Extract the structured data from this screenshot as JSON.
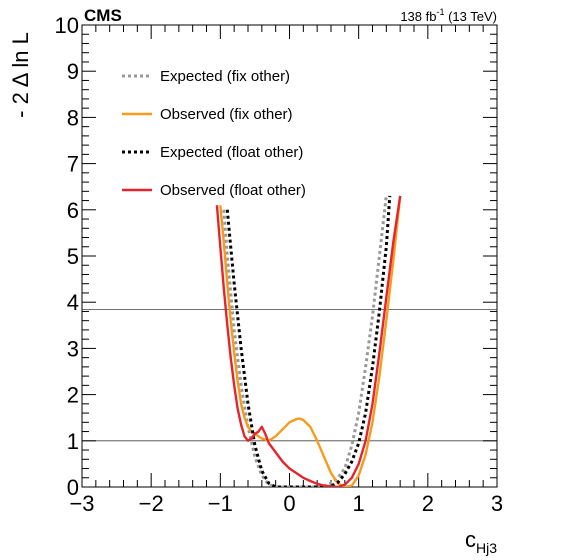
{
  "chart_data": {
    "type": "line",
    "experiment_label": "CMS",
    "lumi_label": {
      "value": "138 fb",
      "exponent": "-1",
      "suffix": " (13 TeV)"
    },
    "xlabel": {
      "main": "c",
      "sub": "Hj3"
    },
    "ylabel": "- 2 Δ ln L",
    "xlim": [
      -3,
      3
    ],
    "ylim": [
      0,
      10
    ],
    "x_ticks": [
      "−3",
      "−2",
      "−1",
      "0",
      "1",
      "2",
      "3"
    ],
    "y_ticks": [
      "0",
      "1",
      "2",
      "3",
      "4",
      "5",
      "6",
      "7",
      "8",
      "9",
      "10"
    ],
    "reference_lines": [
      1,
      3.84
    ],
    "legend": {
      "position": "top-left"
    },
    "series": [
      {
        "name": "Expected (fix other)",
        "color": "#999999",
        "style": "dotted",
        "x": [
          -0.95,
          -0.9,
          -0.8,
          -0.7,
          -0.6,
          -0.5,
          -0.4,
          -0.3,
          -0.2,
          -0.1,
          0.0,
          0.2,
          0.4,
          0.5,
          0.6,
          0.7,
          0.8,
          0.9,
          1.0,
          1.1,
          1.2,
          1.3,
          1.4
        ],
        "y": [
          6.0,
          5.0,
          3.4,
          2.2,
          1.3,
          0.65,
          0.25,
          0.05,
          0.0,
          0.0,
          0.0,
          0.0,
          0.0,
          0.02,
          0.08,
          0.2,
          0.4,
          0.9,
          1.6,
          2.6,
          3.7,
          5.0,
          6.3
        ]
      },
      {
        "name": "Observed (fix other)",
        "color": "#f89b1c",
        "style": "solid",
        "x": [
          -1.0,
          -0.95,
          -0.9,
          -0.85,
          -0.8,
          -0.75,
          -0.7,
          -0.65,
          -0.6,
          -0.55,
          -0.5,
          -0.4,
          -0.3,
          -0.2,
          -0.1,
          0.0,
          0.1,
          0.15,
          0.2,
          0.3,
          0.4,
          0.5,
          0.6,
          0.7,
          0.8,
          0.9,
          1.0,
          1.1,
          1.2,
          1.3,
          1.4,
          1.5,
          1.6
        ],
        "y": [
          6.1,
          5.3,
          4.4,
          3.6,
          2.9,
          2.3,
          1.8,
          1.5,
          1.3,
          1.2,
          1.15,
          1.05,
          1.0,
          1.1,
          1.25,
          1.4,
          1.47,
          1.48,
          1.45,
          1.3,
          1.0,
          0.65,
          0.3,
          0.08,
          0.0,
          0.03,
          0.25,
          0.7,
          1.4,
          2.4,
          3.6,
          4.9,
          6.3
        ]
      },
      {
        "name": "Expected (float other)",
        "color": "#000000",
        "style": "dotted",
        "x": [
          -0.9,
          -0.85,
          -0.8,
          -0.7,
          -0.6,
          -0.5,
          -0.4,
          -0.3,
          -0.2,
          -0.1,
          0.0,
          0.2,
          0.4,
          0.5,
          0.6,
          0.7,
          0.8,
          0.9,
          1.0,
          1.1,
          1.2,
          1.3,
          1.4,
          1.45
        ],
        "y": [
          6.0,
          5.2,
          4.4,
          3.0,
          1.8,
          0.9,
          0.35,
          0.08,
          0.0,
          0.0,
          0.0,
          0.0,
          0.0,
          0.0,
          0.02,
          0.1,
          0.28,
          0.55,
          0.95,
          1.6,
          2.6,
          3.8,
          5.2,
          6.3
        ]
      },
      {
        "name": "Observed (float other)",
        "color": "#e3262d",
        "style": "solid",
        "x": [
          -1.05,
          -1.0,
          -0.95,
          -0.9,
          -0.85,
          -0.8,
          -0.75,
          -0.7,
          -0.65,
          -0.6,
          -0.55,
          -0.5,
          -0.45,
          -0.4,
          -0.35,
          -0.3,
          -0.2,
          -0.1,
          0.0,
          0.1,
          0.2,
          0.3,
          0.4,
          0.5,
          0.6,
          0.7,
          0.8,
          0.9,
          1.0,
          1.1,
          1.2,
          1.3,
          1.4,
          1.5,
          1.6
        ],
        "y": [
          6.1,
          5.2,
          4.3,
          3.5,
          2.8,
          2.2,
          1.7,
          1.35,
          1.1,
          1.0,
          1.05,
          1.15,
          1.2,
          1.3,
          1.15,
          0.95,
          0.75,
          0.55,
          0.4,
          0.3,
          0.2,
          0.13,
          0.07,
          0.03,
          0.01,
          0.0,
          0.05,
          0.2,
          0.5,
          1.0,
          1.8,
          2.9,
          4.1,
          5.3,
          6.3
        ]
      }
    ]
  }
}
